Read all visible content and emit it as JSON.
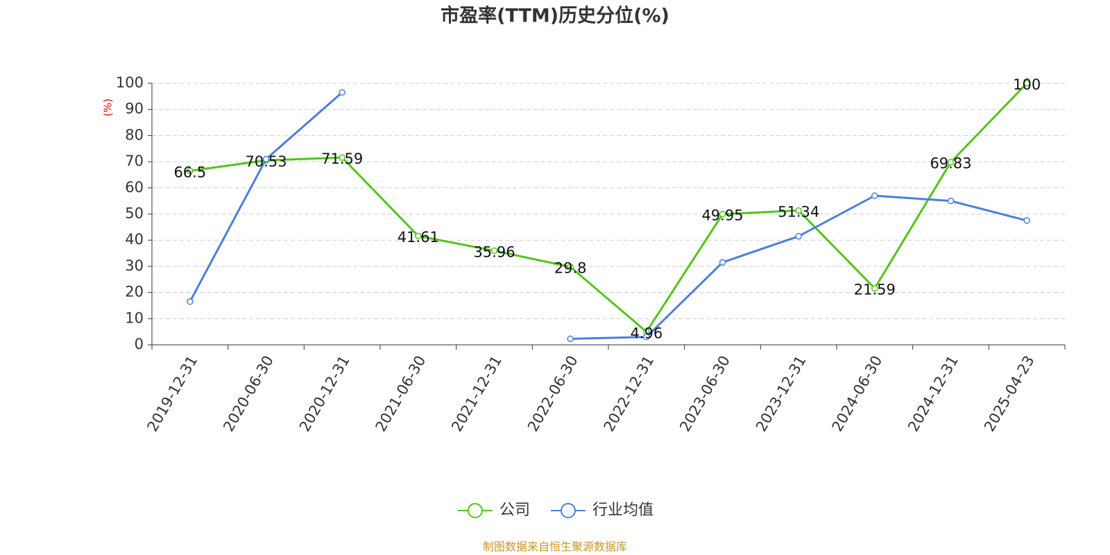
{
  "chart_data": {
    "type": "line",
    "title": "市盈率(TTM)历史分位(%)",
    "y_label": "(%)",
    "source": "制图数据来自恒生聚源数据库",
    "categories": [
      "2019-12-31",
      "2020-06-30",
      "2020-12-31",
      "2021-06-30",
      "2021-12-31",
      "2022-06-30",
      "2022-12-31",
      "2023-06-30",
      "2023-12-31",
      "2024-06-30",
      "2024-12-31",
      "2025-04-23"
    ],
    "series": [
      {
        "name": "公司",
        "color": "#52c41a",
        "show_labels": true,
        "values": [
          66.5,
          70.53,
          71.59,
          41.61,
          35.96,
          29.8,
          4.96,
          49.95,
          51.34,
          21.59,
          69.83,
          100
        ]
      },
      {
        "name": "行业均值",
        "color": "#4a7fdc",
        "show_labels": false,
        "values": [
          16.5,
          71,
          96.5,
          null,
          null,
          2.3,
          3,
          31.5,
          41.5,
          57,
          55,
          47.5
        ]
      }
    ],
    "ylim": [
      0,
      100
    ],
    "yticks": [
      0,
      10,
      20,
      30,
      40,
      50,
      60,
      70,
      80,
      90,
      100
    ],
    "grid": true
  }
}
